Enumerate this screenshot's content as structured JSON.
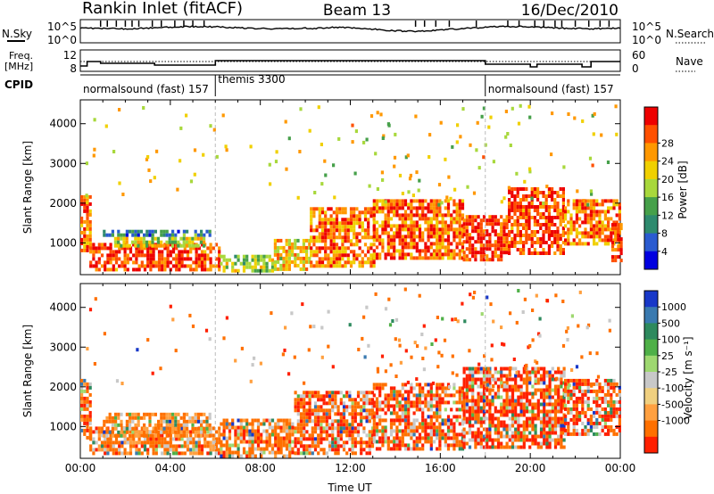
{
  "header": {
    "station": "Rankin Inlet (fitACF)",
    "beam": "Beam 13",
    "date": "16/Dec/2010"
  },
  "noise_panel": {
    "left_label": "N.Sky",
    "left_ticks": [
      "10^5",
      "10^0"
    ],
    "right_label": "N.Search",
    "right_ticks": [
      "10^5",
      "10^0"
    ]
  },
  "freq_panel": {
    "left_label_1": "Freq.",
    "left_label_2": "[MHz]",
    "left_ticks": [
      "12",
      "8"
    ],
    "right_label": "Nave",
    "right_ticks": [
      "60",
      "0"
    ]
  },
  "cpid": {
    "label": "CPID",
    "segments": [
      {
        "name": "normalsound (fast) 157",
        "start_hour": 0,
        "end_hour": 6
      },
      {
        "name": "themis 3300",
        "start_hour": 6,
        "end_hour": 18
      },
      {
        "name": "normalsound (fast) 157",
        "start_hour": 18,
        "end_hour": 24
      }
    ]
  },
  "chart_data": [
    {
      "type": "heatmap",
      "quantity": "power",
      "ylabel": "Slant Range [km]",
      "xlim": [
        0,
        24
      ],
      "ylim": [
        200,
        4600
      ],
      "y_ticks": [
        "1000",
        "2000",
        "3000",
        "4000"
      ],
      "colorbar": {
        "label": "Power [dB]",
        "ticks": [
          "4",
          "8",
          "12",
          "16",
          "20",
          "24",
          "28"
        ],
        "colors": [
          "#0000e0",
          "#2a5bd0",
          "#2e8a6e",
          "#46a04a",
          "#a8d83c",
          "#f0d000",
          "#ff9800",
          "#ff5000",
          "#ee0000"
        ]
      },
      "echo_regions": [
        {
          "t0": 0.0,
          "t1": 0.4,
          "r0": 850,
          "r1": 2200,
          "level": 0.85
        },
        {
          "t0": 0.4,
          "t1": 6.2,
          "r0": 300,
          "r1": 1000,
          "level": 0.9
        },
        {
          "t0": 1.0,
          "t1": 5.8,
          "r0": 1180,
          "r1": 1330,
          "level": 0.25
        },
        {
          "t0": 1.5,
          "t1": 5.5,
          "r0": 900,
          "r1": 1150,
          "level": 0.55
        },
        {
          "t0": 6.2,
          "t1": 8.6,
          "r0": 300,
          "r1": 700,
          "level": 0.5
        },
        {
          "t0": 8.6,
          "t1": 10.2,
          "r0": 350,
          "r1": 1100,
          "level": 0.65
        },
        {
          "t0": 10.2,
          "t1": 13.0,
          "r0": 450,
          "r1": 1900,
          "level": 0.8
        },
        {
          "t0": 13.0,
          "t1": 17.0,
          "r0": 600,
          "r1": 2100,
          "level": 0.85
        },
        {
          "t0": 17.0,
          "t1": 19.0,
          "r0": 550,
          "r1": 1700,
          "level": 0.95
        },
        {
          "t0": 19.0,
          "t1": 21.5,
          "r0": 700,
          "r1": 2400,
          "level": 0.9
        },
        {
          "t0": 21.5,
          "t1": 24.0,
          "r0": 1000,
          "r1": 2100,
          "level": 0.8
        },
        {
          "t0": 23.6,
          "t1": 24.0,
          "r0": 600,
          "r1": 1500,
          "level": 0.9
        }
      ]
    },
    {
      "type": "heatmap",
      "quantity": "velocity",
      "xlabel": "Time UT",
      "ylabel": "Slant Range [km]",
      "xlim": [
        0,
        24
      ],
      "ylim": [
        200,
        4600
      ],
      "x_ticks": [
        "00:00",
        "04:00",
        "08:00",
        "12:00",
        "16:00",
        "20:00",
        "00:00"
      ],
      "y_ticks": [
        "1000",
        "2000",
        "3000",
        "4000"
      ],
      "colorbar": {
        "label": "Velocity [m s⁻¹]",
        "ticks": [
          "1000",
          "500",
          "100",
          "25",
          "-25",
          "-100",
          "-500",
          "-1000"
        ],
        "colors": [
          "#1838c8",
          "#3a7ab0",
          "#2e8a5e",
          "#4fb048",
          "#9ed870",
          "#c8c8c8",
          "#f0d080",
          "#ffa040",
          "#ff7000",
          "#ff2000"
        ]
      },
      "echo_regions": [
        {
          "t0": 0.0,
          "t1": 0.4,
          "r0": 700,
          "r1": 2200,
          "level": 0.7
        },
        {
          "t0": 0.4,
          "t1": 6.2,
          "r0": 300,
          "r1": 1000,
          "level": 0.55
        },
        {
          "t0": 1.0,
          "t1": 5.8,
          "r0": 800,
          "r1": 1350,
          "level": 0.35
        },
        {
          "t0": 6.2,
          "t1": 9.5,
          "r0": 300,
          "r1": 1200,
          "level": 0.55
        },
        {
          "t0": 9.5,
          "t1": 13.0,
          "r0": 350,
          "r1": 1900,
          "level": 0.8
        },
        {
          "t0": 13.0,
          "t1": 17.0,
          "r0": 450,
          "r1": 2100,
          "level": 0.85
        },
        {
          "t0": 17.0,
          "t1": 21.5,
          "r0": 450,
          "r1": 2500,
          "level": 0.9
        },
        {
          "t0": 21.5,
          "t1": 24.0,
          "r0": 800,
          "r1": 2200,
          "level": 0.85
        }
      ]
    }
  ]
}
